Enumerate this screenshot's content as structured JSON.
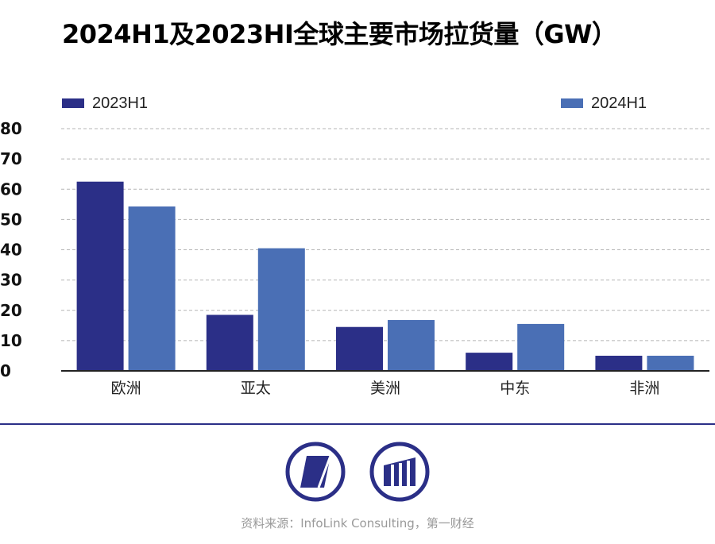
{
  "title": "2024H1及2023HI全球主要市场拉货量（GW）",
  "colors": {
    "series_2023": "#2b2f87",
    "series_2024": "#4a6fb5",
    "grid": "#b5b5b5",
    "divider": "#2b2f87"
  },
  "chart_data": {
    "type": "bar",
    "title": "2024H1及2023HI全球主要市场拉货量（GW）",
    "categories": [
      "欧洲",
      "亚太",
      "美洲",
      "中东",
      "非洲"
    ],
    "series": [
      {
        "name": "2023H1",
        "values": [
          62.5,
          18.5,
          14.5,
          6,
          5
        ]
      },
      {
        "name": "2024H1",
        "values": [
          54.3,
          40.5,
          16.8,
          15.5,
          5
        ]
      }
    ],
    "yticks": [
      0,
      10,
      20,
      30,
      40,
      50,
      60,
      70,
      80
    ],
    "ylim": [
      0,
      80
    ],
    "ylabel": "",
    "xlabel": "",
    "grid": true,
    "legend": "top"
  },
  "source": "资料来源：InfoLink Consulting，第一财经",
  "logos": [
    "infolink-logo-icon",
    "yicai-logo-icon"
  ]
}
